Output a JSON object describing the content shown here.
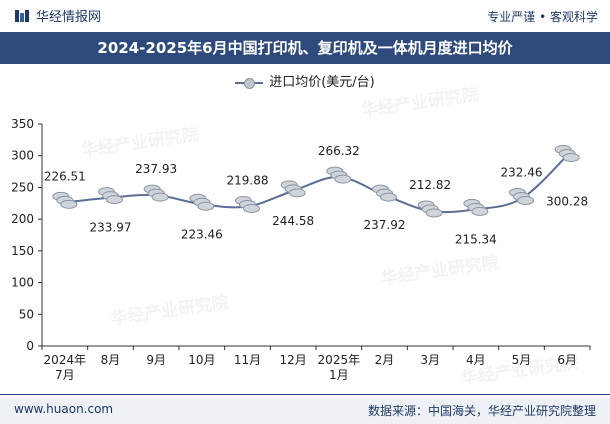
{
  "header": {
    "brand": "华经情报网",
    "slogan": "专业严谨 • 客观科学"
  },
  "footer": {
    "website": "www.huaon.com",
    "source": "数据来源：中国海关，华经产业研究院整理"
  },
  "watermark": "华经产业研究院",
  "colors": {
    "title_band": "#2e4a7c",
    "line": "#5b6e96",
    "coin_fill": "#cfd4da",
    "coin_stroke": "#8a94a3"
  },
  "chart_data": {
    "type": "line",
    "title": "2024-2025年6月中国打印机、复印机及一体机月度进口均价",
    "legend": [
      "进口均价(美元/台)"
    ],
    "categories": [
      "2024年\n7月",
      "8月",
      "9月",
      "10月",
      "11月",
      "12月",
      "2025年\n1月",
      "2月",
      "3月",
      "4月",
      "5月",
      "6月"
    ],
    "series": [
      {
        "name": "进口均价(美元/台)",
        "values": [
          226.51,
          233.97,
          237.93,
          223.46,
          219.88,
          244.58,
          266.32,
          237.92,
          212.82,
          215.34,
          232.46,
          300.28
        ]
      }
    ],
    "data_labels": [
      "226.51",
      "233.97",
      "237.93",
      "223.46",
      "219.88",
      "244.58",
      "266.32",
      "237.92",
      "212.82",
      "215.34",
      "232.46",
      "300.28"
    ],
    "ylim": [
      0,
      350
    ],
    "yticks": [
      0,
      50,
      100,
      150,
      200,
      250,
      300,
      350
    ],
    "xlabel": "",
    "ylabel": "",
    "grid": false,
    "legend_position": "top-center"
  }
}
